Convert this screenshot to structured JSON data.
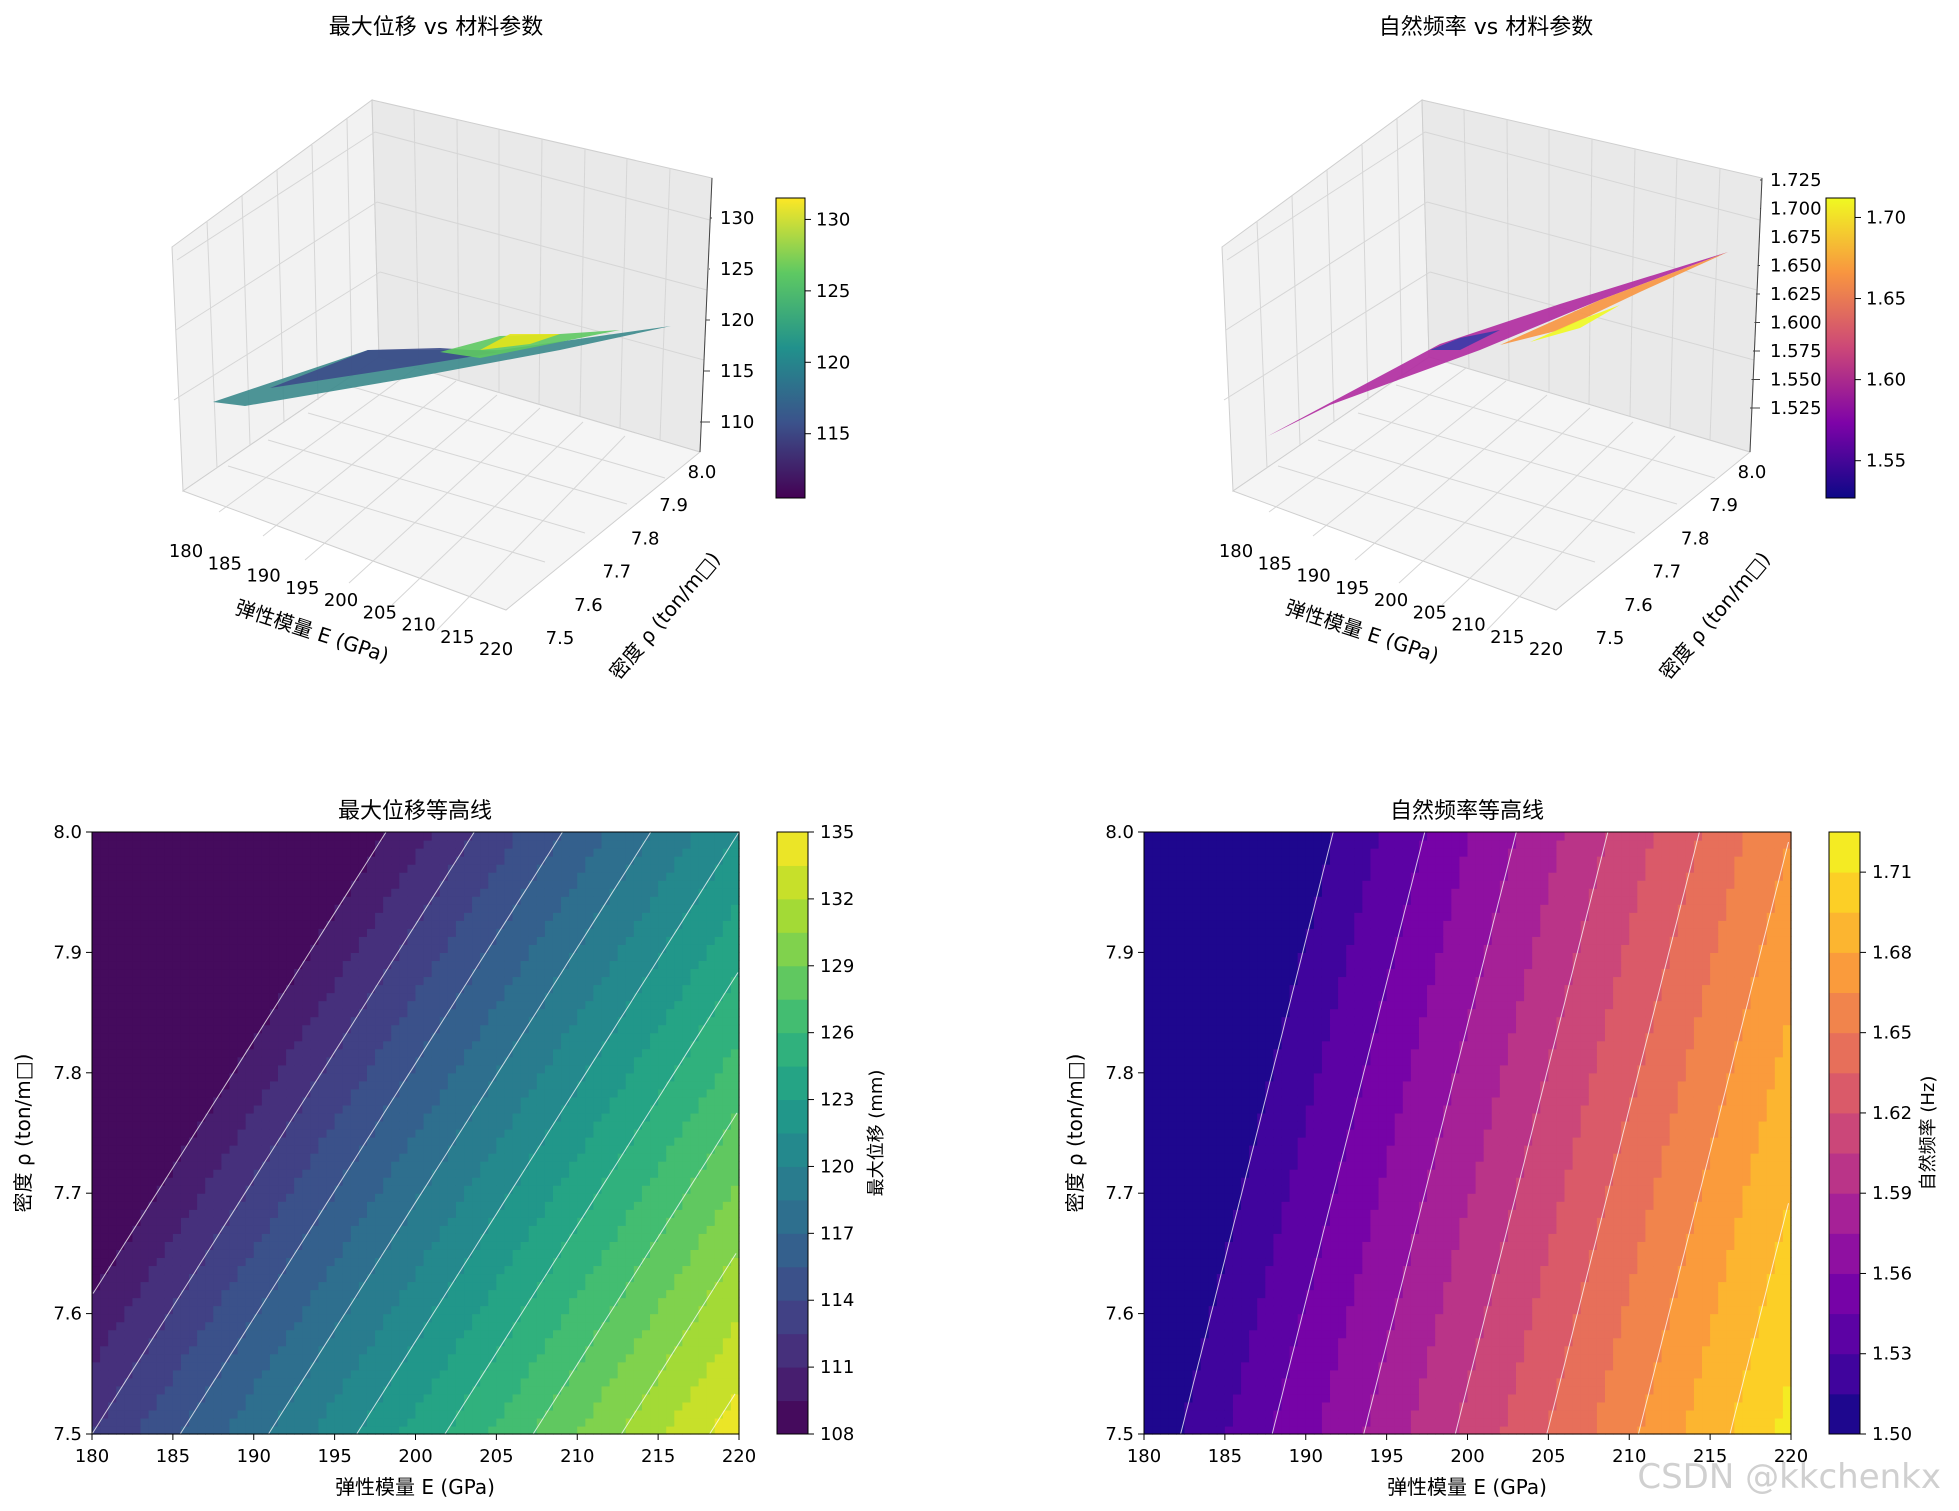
{
  "watermark": "CSDN @kkchenkx",
  "chart_data": [
    {
      "type": "surface3d",
      "title": "最大位移 vs 材料参数",
      "xlabel": "弹性模量 E (GPa)",
      "ylabel": "密度 ρ (ton/m□)",
      "zlabel": "",
      "x_ticks": [
        180,
        185,
        190,
        195,
        200,
        205,
        210,
        215,
        220
      ],
      "y_ticks": [
        "7.5",
        "7.6",
        "7.7",
        "7.8",
        "7.9",
        "8.0"
      ],
      "z_ticks": [
        "110",
        "115",
        "120",
        "125",
        "130"
      ],
      "colormap": "viridis",
      "colorbar_ticks": [
        "115",
        "120",
        "125",
        "130"
      ],
      "grid": true,
      "xlim": [
        180,
        220
      ],
      "ylim": [
        7.5,
        8.0
      ],
      "zlim": [
        108,
        132
      ]
    },
    {
      "type": "surface3d",
      "title": "自然频率 vs 材料参数",
      "xlabel": "弹性模量 E (GPa)",
      "ylabel": "密度 ρ (ton/m□)",
      "zlabel": "",
      "x_ticks": [
        180,
        185,
        190,
        195,
        200,
        205,
        210,
        215,
        220
      ],
      "y_ticks": [
        "7.5",
        "7.6",
        "7.7",
        "7.8",
        "7.9",
        "8.0"
      ],
      "z_ticks": [
        "1.525",
        "1.550",
        "1.575",
        "1.600",
        "1.625",
        "1.650",
        "1.675",
        "1.700",
        "1.725"
      ],
      "colormap": "plasma",
      "colorbar_ticks": [
        "1.55",
        "1.60",
        "1.65",
        "1.70"
      ],
      "grid": true,
      "xlim": [
        180,
        220
      ],
      "ylim": [
        7.5,
        8.0
      ],
      "zlim": [
        1.51,
        1.725
      ]
    },
    {
      "type": "contour",
      "title": "最大位移等高线",
      "xlabel": "弹性模量 E (GPa)",
      "ylabel": "密度 ρ (ton/m□)",
      "colorbar_label": "最大位移 (mm)",
      "x_ticks": [
        "180",
        "185",
        "190",
        "195",
        "200",
        "205",
        "210",
        "215",
        "220"
      ],
      "y_ticks": [
        "7.5",
        "7.6",
        "7.7",
        "7.8",
        "7.9",
        "8.0"
      ],
      "colorbar_ticks": [
        "108",
        "111",
        "114",
        "117",
        "120",
        "123",
        "126",
        "129",
        "132",
        "135"
      ],
      "colormap": "viridis",
      "xlim": [
        180,
        220
      ],
      "ylim": [
        7.5,
        8.0
      ],
      "zlim": [
        108,
        135
      ],
      "levels": 18
    },
    {
      "type": "contour",
      "title": "自然频率等高线",
      "xlabel": "弹性模量 E (GPa)",
      "ylabel": "密度 ρ (ton/m□)",
      "colorbar_label": "自然频率 (Hz)",
      "x_ticks": [
        "180",
        "185",
        "190",
        "195",
        "200",
        "205",
        "210",
        "215",
        "220"
      ],
      "y_ticks": [
        "7.5",
        "7.6",
        "7.7",
        "7.8",
        "7.9",
        "8.0"
      ],
      "colorbar_ticks": [
        "1.50",
        "1.53",
        "1.56",
        "1.59",
        "1.62",
        "1.65",
        "1.68",
        "1.71"
      ],
      "colormap": "plasma",
      "xlim": [
        180,
        220
      ],
      "ylim": [
        7.5,
        8.0
      ],
      "zlim": [
        1.5,
        1.725
      ],
      "levels": 15
    }
  ]
}
